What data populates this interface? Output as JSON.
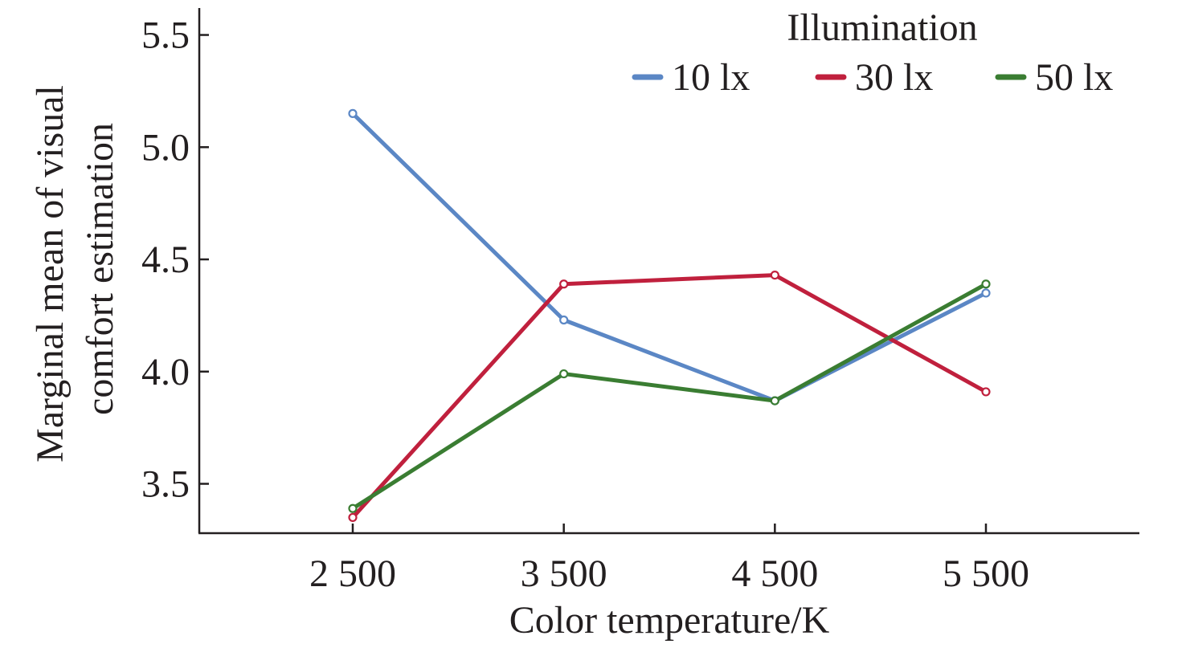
{
  "chart_data": {
    "type": "line",
    "title": "",
    "xlabel": "Color temperature/K",
    "ylabel": [
      "Marginal mean of visual",
      "comfort estimation"
    ],
    "categories": [
      "2 500",
      "3 500",
      "4 500",
      "5 500"
    ],
    "x": [
      2500,
      3500,
      4500,
      5500
    ],
    "y_ticks": [
      "3.5",
      "4.0",
      "4.5",
      "5.0",
      "5.5"
    ],
    "ylim": [
      3.28,
      5.62
    ],
    "grid": false,
    "legend": {
      "title": "Illumination",
      "placement": "top-right"
    },
    "series": [
      {
        "name": "10 lx",
        "color": "#5b87c5",
        "values": [
          5.15,
          4.23,
          3.87,
          4.35
        ]
      },
      {
        "name": "30 lx",
        "color": "#c0203d",
        "values": [
          3.35,
          4.39,
          4.43,
          3.91
        ]
      },
      {
        "name": "50 lx",
        "color": "#3a7d32",
        "values": [
          3.39,
          3.99,
          3.87,
          4.39
        ]
      }
    ]
  }
}
